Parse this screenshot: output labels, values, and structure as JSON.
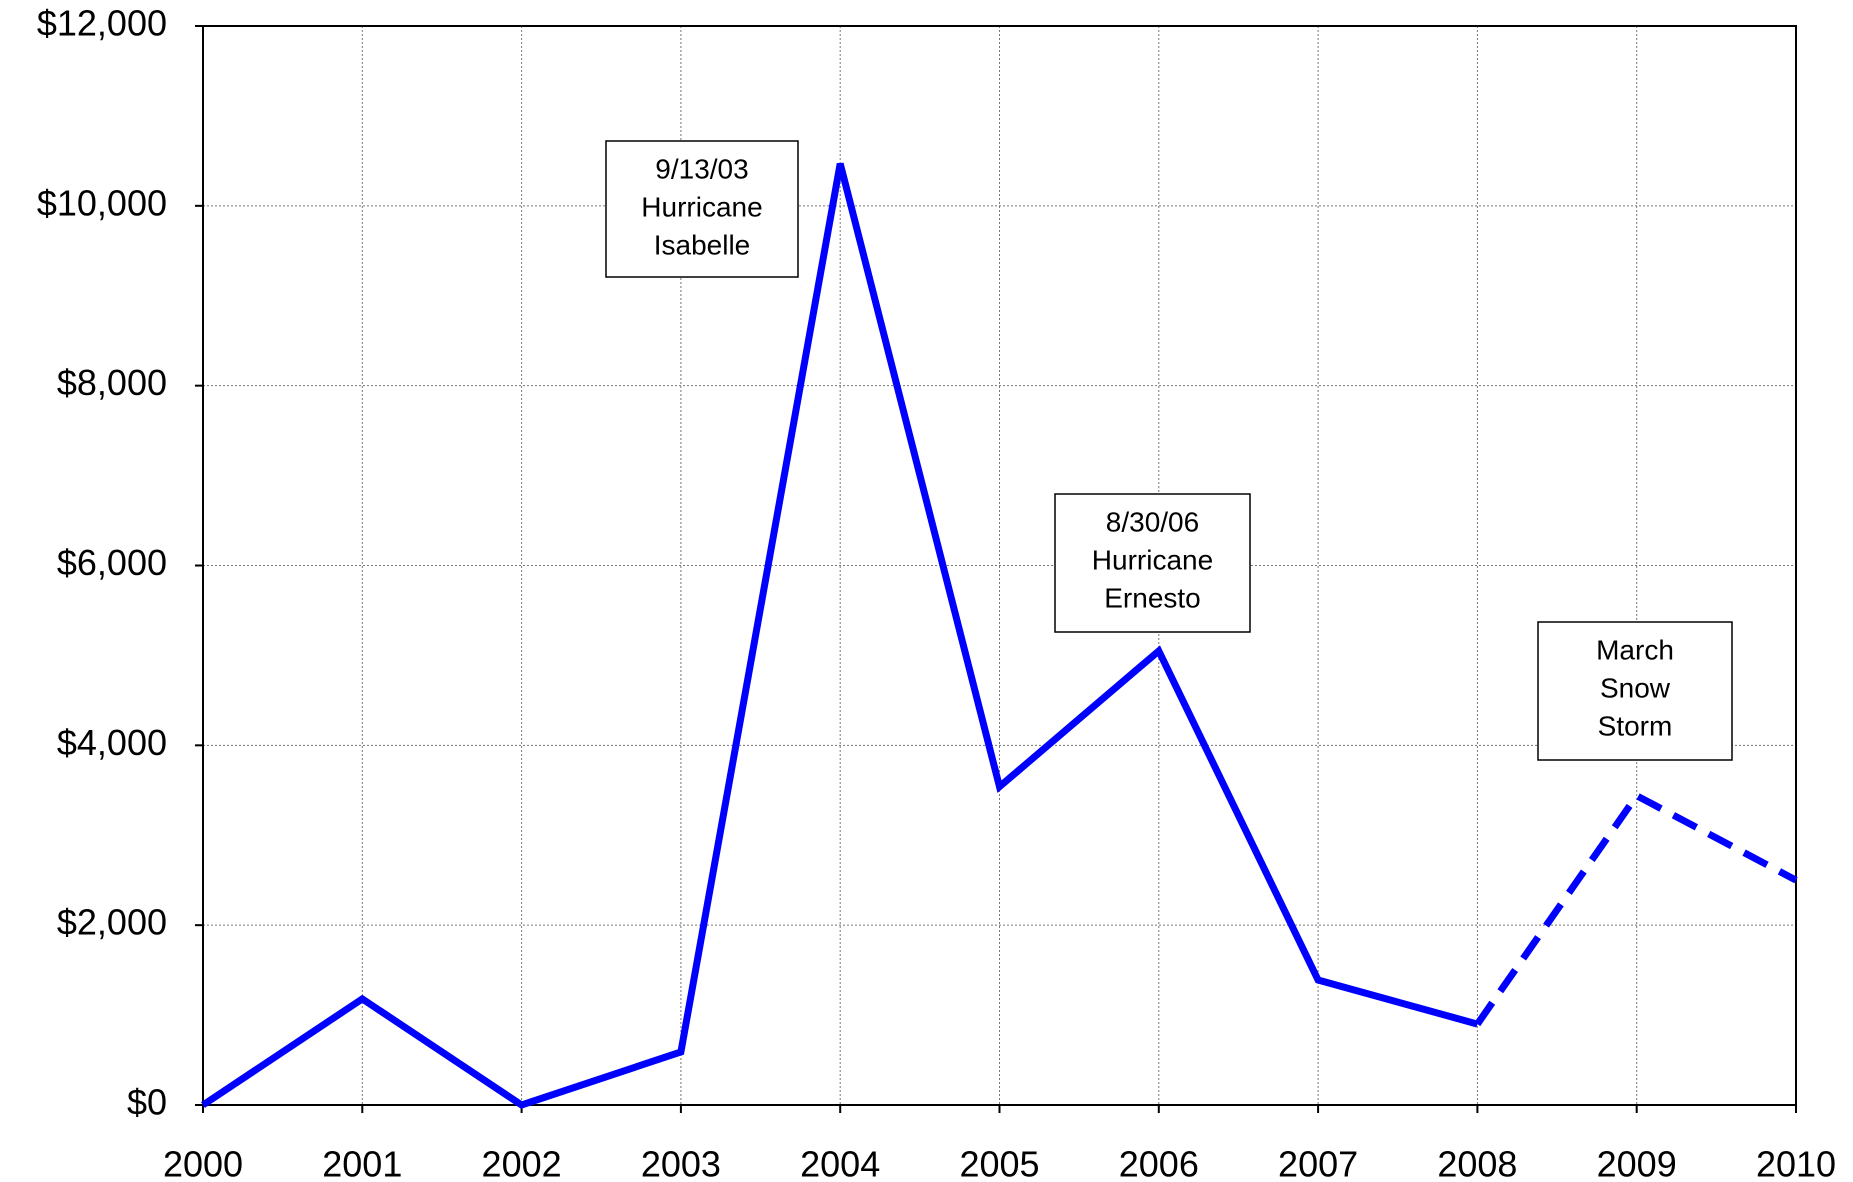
{
  "chart_data": {
    "type": "line",
    "x": [
      2000,
      2001,
      2002,
      2003,
      2004,
      2005,
      2006,
      2007,
      2008,
      2009,
      2010
    ],
    "series": [
      {
        "color": "#0000ff",
        "dashed": false,
        "values": [
          0,
          1180,
          0,
          590,
          10470,
          3540,
          5050,
          1390,
          900,
          null,
          null
        ]
      },
      {
        "color": "#0000ff",
        "dashed": true,
        "values": [
          null,
          null,
          null,
          null,
          null,
          null,
          null,
          null,
          900,
          3440,
          2500
        ]
      }
    ],
    "xlim": [
      2000,
      2010
    ],
    "xticks": [
      2000,
      2001,
      2002,
      2003,
      2004,
      2005,
      2006,
      2007,
      2008,
      2009,
      2010
    ],
    "ylim": [
      0,
      12000
    ],
    "yticks": [
      {
        "value": 0,
        "label": "$0"
      },
      {
        "value": 2000,
        "label": "$2,000"
      },
      {
        "value": 4000,
        "label": "$4,000"
      },
      {
        "value": 6000,
        "label": "$6,000"
      },
      {
        "value": 8000,
        "label": "$8,000"
      },
      {
        "value": 10000,
        "label": "$10,000"
      },
      {
        "value": 12000,
        "label": "$12,000"
      }
    ],
    "grid": true,
    "annotations": [
      {
        "lines": [
          "9/13/03",
          "Hurricane",
          "Isabelle"
        ]
      },
      {
        "lines": [
          "8/30/06",
          "Hurricane",
          "Ernesto"
        ]
      },
      {
        "lines": [
          "March",
          "Snow",
          "Storm"
        ]
      }
    ]
  }
}
